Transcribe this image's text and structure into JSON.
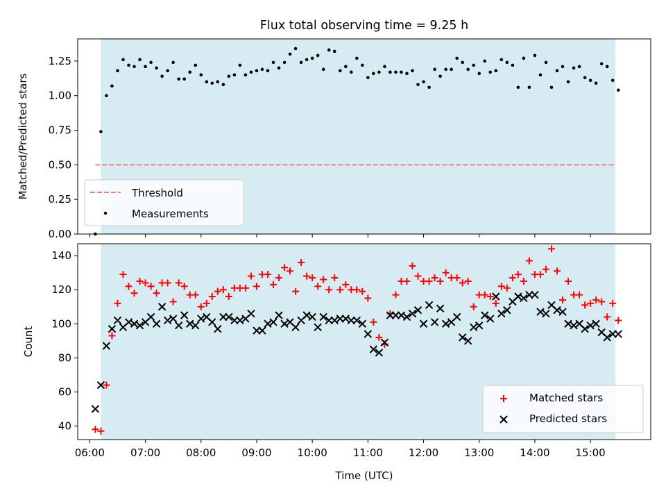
{
  "chart_data": [
    {
      "type": "scatter",
      "title": "Flux total observing time = 9.25 h",
      "xlabel": "",
      "ylabel": "Matched/Predicted stars",
      "xlim": [
        "05:47",
        "16:05"
      ],
      "ylim": [
        0,
        1.41
      ],
      "yticks": [
        0.0,
        0.25,
        0.5,
        0.75,
        1.0,
        1.25
      ],
      "ytick_labels": [
        "0.00",
        "0.25",
        "0.50",
        "0.75",
        "1.00",
        "1.25"
      ],
      "xticks": [
        "06:00",
        "07:00",
        "08:00",
        "09:00",
        "10:00",
        "11:00",
        "12:00",
        "13:00",
        "14:00",
        "15:00"
      ],
      "shaded_span": [
        "06:12",
        "15:27"
      ],
      "legend_position": "lower-left",
      "threshold": {
        "name": "Threshold",
        "value": 0.5,
        "x_range": [
          "06:06",
          "15:27"
        ],
        "color": "#f08080",
        "style": "dashed"
      },
      "series": [
        {
          "name": "Measurements",
          "marker": "dot",
          "color": "#000000",
          "x": [
            "06:06",
            "06:12",
            "06:18",
            "06:24",
            "06:30",
            "06:36",
            "06:42",
            "06:48",
            "06:54",
            "07:00",
            "07:06",
            "07:12",
            "07:18",
            "07:24",
            "07:30",
            "07:36",
            "07:42",
            "07:48",
            "07:54",
            "08:00",
            "08:06",
            "08:12",
            "08:18",
            "08:24",
            "08:30",
            "08:36",
            "08:42",
            "08:48",
            "08:54",
            "09:00",
            "09:06",
            "09:12",
            "09:18",
            "09:24",
            "09:30",
            "09:36",
            "09:42",
            "09:48",
            "09:54",
            "10:00",
            "10:06",
            "10:12",
            "10:18",
            "10:24",
            "10:30",
            "10:36",
            "10:42",
            "10:48",
            "10:54",
            "11:00",
            "11:06",
            "11:12",
            "11:18",
            "11:24",
            "11:30",
            "11:36",
            "11:42",
            "11:48",
            "11:54",
            "12:00",
            "12:06",
            "12:12",
            "12:18",
            "12:24",
            "12:30",
            "12:36",
            "12:42",
            "12:48",
            "12:54",
            "13:00",
            "13:06",
            "13:12",
            "13:18",
            "13:24",
            "13:30",
            "13:36",
            "13:42",
            "13:48",
            "13:54",
            "14:00",
            "14:06",
            "14:12",
            "14:18",
            "14:24",
            "14:30",
            "14:36",
            "14:42",
            "14:48",
            "14:54",
            "15:00",
            "15:06",
            "15:12",
            "15:18",
            "15:24",
            "15:30"
          ],
          "y": [
            0.0,
            0.74,
            1.0,
            1.07,
            1.18,
            1.26,
            1.22,
            1.21,
            1.26,
            1.21,
            1.24,
            1.2,
            1.14,
            1.18,
            1.24,
            1.12,
            1.12,
            1.17,
            1.22,
            1.15,
            1.1,
            1.09,
            1.1,
            1.08,
            1.14,
            1.15,
            1.22,
            1.15,
            1.17,
            1.18,
            1.19,
            1.18,
            1.24,
            1.2,
            1.24,
            1.3,
            1.34,
            1.24,
            1.26,
            1.27,
            1.29,
            1.19,
            1.33,
            1.32,
            1.18,
            1.21,
            1.17,
            1.27,
            1.22,
            1.13,
            1.16,
            1.17,
            1.21,
            1.17,
            1.17,
            1.17,
            1.16,
            1.18,
            1.08,
            1.1,
            1.06,
            1.19,
            1.14,
            1.19,
            1.19,
            1.27,
            1.24,
            1.19,
            1.22,
            1.16,
            1.25,
            1.17,
            1.18,
            1.26,
            1.24,
            1.22,
            1.06,
            1.27,
            1.06,
            1.29,
            1.15,
            1.24,
            1.06,
            1.18,
            1.21,
            1.1,
            1.2,
            1.21,
            1.13,
            1.11,
            1.09,
            1.23,
            1.21,
            1.11,
            1.04
          ]
        }
      ]
    },
    {
      "type": "scatter",
      "title": "",
      "xlabel": "Time (UTC)",
      "ylabel": "Count",
      "xlim": [
        "05:47",
        "16:05"
      ],
      "ylim": [
        32,
        147
      ],
      "yticks": [
        40,
        60,
        80,
        100,
        120,
        140
      ],
      "ytick_labels": [
        "40",
        "60",
        "80",
        "100",
        "120",
        "140"
      ],
      "xticks": [
        "06:00",
        "07:00",
        "08:00",
        "09:00",
        "10:00",
        "11:00",
        "12:00",
        "13:00",
        "14:00",
        "15:00"
      ],
      "xtick_labels": [
        "06:00",
        "07:00",
        "08:00",
        "09:00",
        "10:00",
        "11:00",
        "12:00",
        "13:00",
        "14:00",
        "15:00"
      ],
      "shaded_span": [
        "06:12",
        "15:27"
      ],
      "legend_position": "lower-right",
      "series": [
        {
          "name": "Matched stars",
          "marker": "plus",
          "color": "#ff0000",
          "x": [
            "06:06",
            "06:12",
            "06:18",
            "06:24",
            "06:30",
            "06:36",
            "06:42",
            "06:48",
            "06:54",
            "07:00",
            "07:06",
            "07:12",
            "07:18",
            "07:24",
            "07:30",
            "07:36",
            "07:42",
            "07:48",
            "07:54",
            "08:00",
            "08:06",
            "08:12",
            "08:18",
            "08:24",
            "08:30",
            "08:36",
            "08:42",
            "08:48",
            "08:54",
            "09:00",
            "09:06",
            "09:12",
            "09:18",
            "09:24",
            "09:30",
            "09:36",
            "09:42",
            "09:48",
            "09:54",
            "10:00",
            "10:06",
            "10:12",
            "10:18",
            "10:24",
            "10:30",
            "10:36",
            "10:42",
            "10:48",
            "10:54",
            "11:00",
            "11:06",
            "11:12",
            "11:18",
            "11:24",
            "11:30",
            "11:36",
            "11:42",
            "11:48",
            "11:54",
            "12:00",
            "12:06",
            "12:12",
            "12:18",
            "12:24",
            "12:30",
            "12:36",
            "12:42",
            "12:48",
            "12:54",
            "13:00",
            "13:06",
            "13:12",
            "13:18",
            "13:24",
            "13:30",
            "13:36",
            "13:42",
            "13:48",
            "13:54",
            "14:00",
            "14:06",
            "14:12",
            "14:18",
            "14:24",
            "14:30",
            "14:36",
            "14:42",
            "14:48",
            "14:54",
            "15:00",
            "15:06",
            "15:12",
            "15:18",
            "15:24",
            "15:30"
          ],
          "y": [
            38,
            37,
            64,
            93,
            112,
            129,
            122,
            118,
            125,
            124,
            122,
            118,
            124,
            124,
            113,
            124,
            122,
            117,
            117,
            110,
            112,
            116,
            119,
            120,
            116,
            121,
            121,
            121,
            128,
            122,
            129,
            129,
            123,
            127,
            133,
            131,
            119,
            136,
            128,
            127,
            122,
            126,
            120,
            127,
            120,
            123,
            120,
            120,
            119,
            115,
            101,
            92,
            88,
            106,
            117,
            125,
            125,
            134,
            128,
            125,
            125,
            127,
            125,
            130,
            127,
            127,
            124,
            125,
            110,
            117,
            117,
            116,
            112,
            122,
            121,
            127,
            129,
            125,
            137,
            129,
            129,
            132,
            144,
            131,
            114,
            125,
            117,
            117,
            111,
            112,
            114,
            113,
            104,
            112,
            102
          ]
        },
        {
          "name": "Predicted stars",
          "marker": "x",
          "color": "#000000",
          "x": [
            "06:06",
            "06:12",
            "06:18",
            "06:24",
            "06:30",
            "06:36",
            "06:42",
            "06:48",
            "06:54",
            "07:00",
            "07:06",
            "07:12",
            "07:18",
            "07:24",
            "07:30",
            "07:36",
            "07:42",
            "07:48",
            "07:54",
            "08:00",
            "08:06",
            "08:12",
            "08:18",
            "08:24",
            "08:30",
            "08:36",
            "08:42",
            "08:48",
            "08:54",
            "09:00",
            "09:06",
            "09:12",
            "09:18",
            "09:24",
            "09:30",
            "09:36",
            "09:42",
            "09:48",
            "09:54",
            "10:00",
            "10:06",
            "10:12",
            "10:18",
            "10:24",
            "10:30",
            "10:36",
            "10:42",
            "10:48",
            "10:54",
            "11:00",
            "11:06",
            "11:12",
            "11:18",
            "11:24",
            "11:30",
            "11:36",
            "11:42",
            "11:48",
            "11:54",
            "12:00",
            "12:06",
            "12:12",
            "12:18",
            "12:24",
            "12:30",
            "12:36",
            "12:42",
            "12:48",
            "12:54",
            "13:00",
            "13:06",
            "13:12",
            "13:18",
            "13:24",
            "13:30",
            "13:36",
            "13:42",
            "13:48",
            "13:54",
            "14:00",
            "14:06",
            "14:12",
            "14:18",
            "14:24",
            "14:30",
            "14:36",
            "14:42",
            "14:48",
            "14:54",
            "15:00",
            "15:06",
            "15:12",
            "15:18",
            "15:24",
            "15:30"
          ],
          "y": [
            50,
            64,
            87,
            97,
            102,
            98,
            101,
            100,
            99,
            101,
            104,
            100,
            110,
            102,
            103,
            99,
            105,
            100,
            99,
            103,
            104,
            101,
            97,
            104,
            104,
            102,
            102,
            103,
            106,
            96,
            96,
            100,
            101,
            105,
            100,
            101,
            98,
            102,
            105,
            104,
            98,
            104,
            102,
            102,
            103,
            103,
            102,
            102,
            100,
            94,
            85,
            83,
            89,
            105,
            105,
            105,
            104,
            106,
            108,
            100,
            111,
            101,
            109,
            100,
            101,
            104,
            92,
            90,
            98,
            99,
            105,
            103,
            116,
            106,
            108,
            113,
            116,
            115,
            117,
            117,
            107,
            106,
            111,
            108,
            107,
            100,
            99,
            100,
            97,
            99,
            100,
            95,
            92,
            94,
            94
          ]
        }
      ]
    }
  ]
}
